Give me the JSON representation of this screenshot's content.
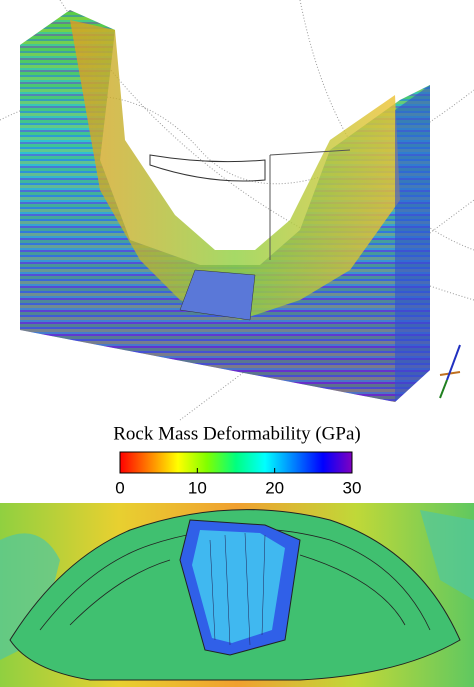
{
  "colorbar": {
    "title": "Rock Mass Deformability (GPa)",
    "lim": [
      0,
      30
    ],
    "ticks": [
      0,
      10,
      20,
      30
    ],
    "colors": [
      "#ff0000",
      "#ff8000",
      "#ffff00",
      "#80ff00",
      "#00ff80",
      "#00ffff",
      "#0080ff",
      "#0000ff",
      "#8000c0"
    ]
  }
}
